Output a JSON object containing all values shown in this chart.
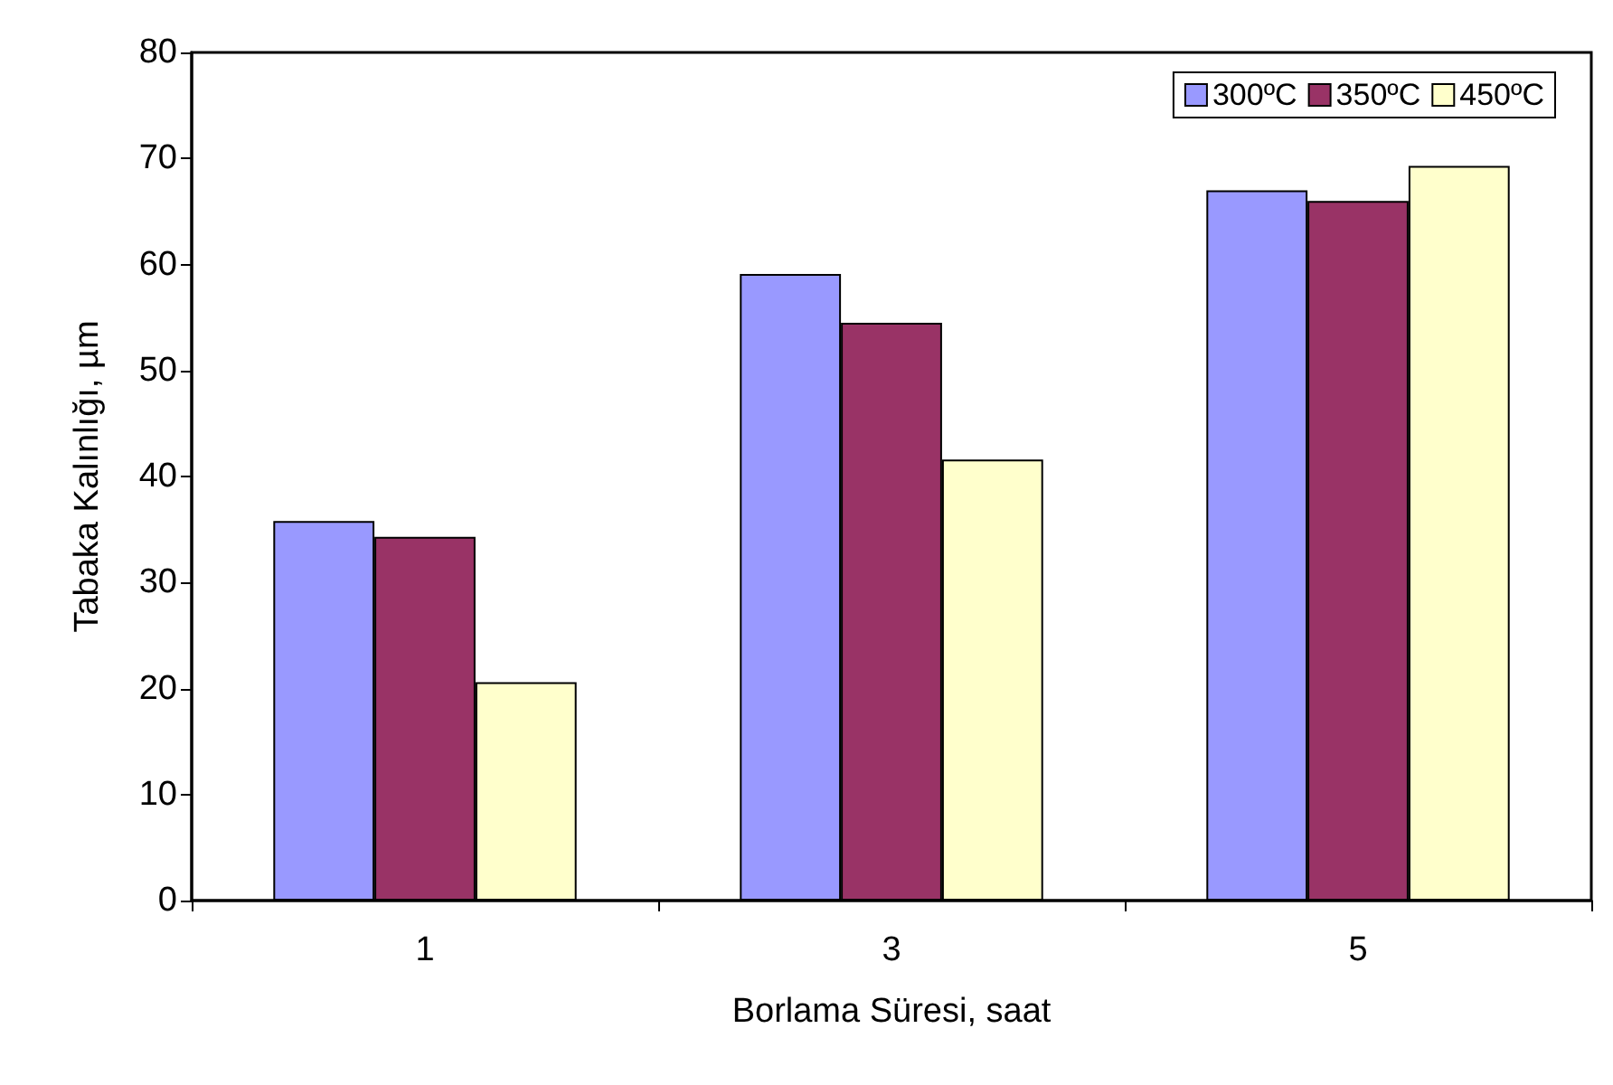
{
  "chart_data": {
    "type": "bar",
    "xlabel": "Borlama Süresi, saat",
    "ylabel": "Tabaka Kalınlığı, µm",
    "categories": [
      "1",
      "3",
      "5"
    ],
    "series": [
      {
        "name": "300ºC",
        "color": "#9999ff",
        "values": [
          35.8,
          59.1,
          67.0
        ]
      },
      {
        "name": "350ºC",
        "color": "#993366",
        "values": [
          34.3,
          54.5,
          66.0
        ]
      },
      {
        "name": "450ºC",
        "color": "#ffffcc",
        "values": [
          20.6,
          41.6,
          69.3
        ]
      }
    ],
    "ylim": [
      0,
      80
    ],
    "yticks": [
      0,
      10,
      20,
      30,
      40,
      50,
      60,
      70,
      80
    ],
    "grid": false,
    "legend": "top right"
  }
}
